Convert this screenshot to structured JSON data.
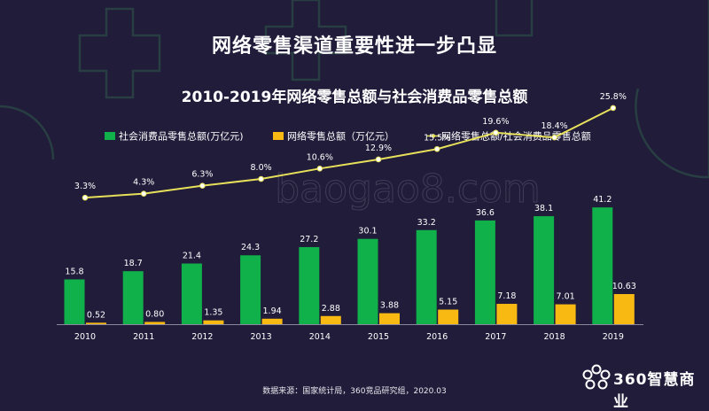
{
  "title": "网络零售渠道重要性进一步凸显",
  "brand": "360智慧商业",
  "source": "数据来源：国家统计局，360竞品研究组，2020.03",
  "watermark": "baogao8.com",
  "colors": {
    "background": "#201c3a",
    "green": "#10b04a",
    "orange": "#f8b912",
    "line": "#e7e05a",
    "text": "#ffffff"
  },
  "chart_data": {
    "type": "bar",
    "title": "2010-2019年网络零售总额与社会消费品零售总额",
    "categories": [
      "2010",
      "2011",
      "2012",
      "2013",
      "2014",
      "2015",
      "2016",
      "2017",
      "2018",
      "2019"
    ],
    "series": [
      {
        "name": "社会消费品零售总额(万亿元)",
        "type": "bar",
        "values": [
          15.8,
          18.7,
          21.4,
          24.3,
          27.2,
          30.1,
          33.2,
          36.6,
          38.1,
          41.2
        ],
        "labels": [
          "15.8",
          "18.7",
          "21.4",
          "24.3",
          "27.2",
          "30.1",
          "33.2",
          "36.6",
          "38.1",
          "41.2"
        ]
      },
      {
        "name": "网络零售总额（万亿元）",
        "type": "bar",
        "values": [
          0.52,
          0.8,
          1.35,
          1.94,
          2.88,
          3.88,
          5.15,
          7.18,
          7.01,
          10.63
        ],
        "labels": [
          "0.52",
          "0.80",
          "1.35",
          "1.94",
          "2.88",
          "3.88",
          "5.15",
          "7.18",
          "7.01",
          "10.63"
        ]
      },
      {
        "name": "网络零售总额/社会消费品零售总额",
        "type": "line",
        "values": [
          3.3,
          4.3,
          6.3,
          8.0,
          10.6,
          12.9,
          15.5,
          19.6,
          18.4,
          25.8
        ],
        "labels": [
          "3.3%",
          "4.3%",
          "6.3%",
          "8.0%",
          "10.6%",
          "12.9%",
          "15.5%",
          "19.6%",
          "18.4%",
          "25.8%"
        ]
      }
    ],
    "legend_position": "top",
    "grid": false
  }
}
